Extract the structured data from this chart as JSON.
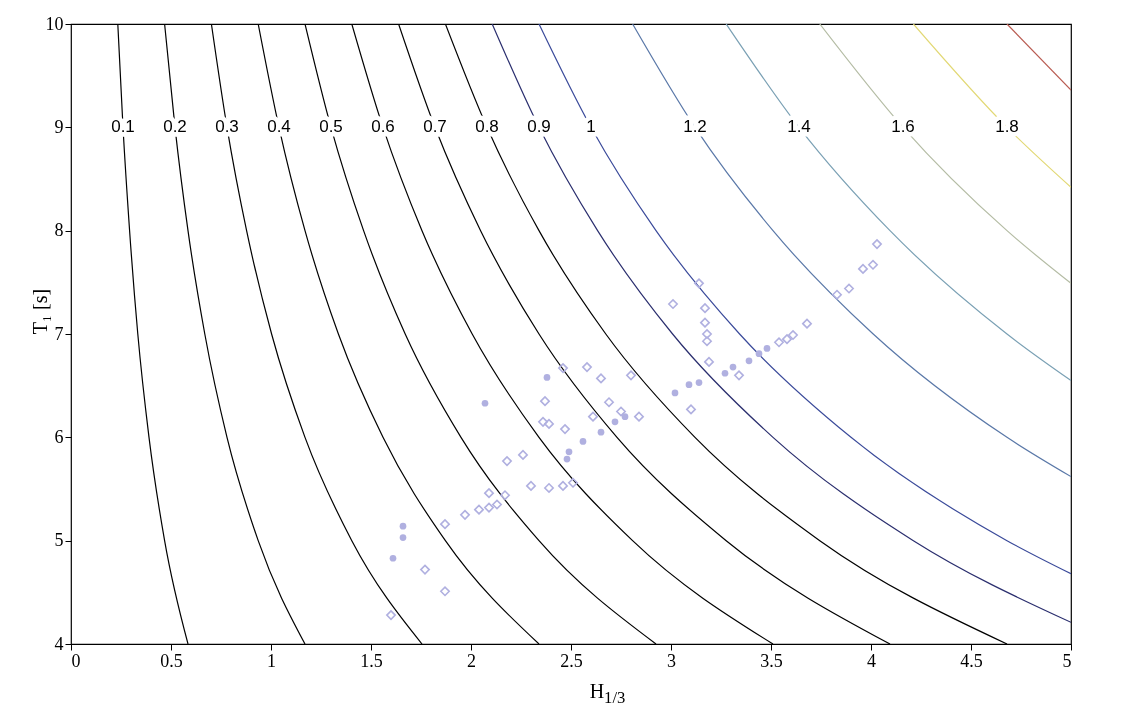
{
  "chart_data": {
    "type": "line",
    "xlabel": "H$_{1/3}$",
    "ylabel": "T₁ [s]",
    "xlim": [
      0,
      5
    ],
    "ylim": [
      4,
      10
    ],
    "xticks": [
      0,
      0.5,
      1,
      1.5,
      2,
      2.5,
      3,
      3.5,
      4,
      4.5,
      5
    ],
    "yticks": [
      4,
      5,
      6,
      7,
      8,
      9,
      10
    ],
    "grid": false,
    "series": [
      {
        "name": "0.1",
        "color": "#000000",
        "x": [
          0.585,
          0.468,
          0.39,
          0.334,
          0.293,
          0.26,
          0.234
        ],
        "values": [
          4,
          5,
          6,
          7,
          8,
          9,
          10
        ]
      },
      {
        "name": "0.2",
        "color": "#000000",
        "x": [
          1.17,
          0.936,
          0.78,
          0.669,
          0.585,
          0.52,
          0.468
        ],
        "values": [
          4,
          5,
          6,
          7,
          8,
          9,
          10
        ]
      },
      {
        "name": "0.3",
        "color": "#000000",
        "x": [
          1.755,
          1.404,
          1.17,
          1.003,
          0.878,
          0.78,
          0.702
        ],
        "values": [
          4,
          5,
          6,
          7,
          8,
          9,
          10
        ]
      },
      {
        "name": "0.4",
        "color": "#000000",
        "x": [
          2.34,
          1.872,
          1.56,
          1.337,
          1.17,
          1.04,
          0.936
        ],
        "values": [
          4,
          5,
          6,
          7,
          8,
          9,
          10
        ]
      },
      {
        "name": "0.5",
        "color": "#000000",
        "x": [
          2.925,
          2.34,
          1.95,
          1.671,
          1.463,
          1.3,
          1.17
        ],
        "values": [
          4,
          5,
          6,
          7,
          8,
          9,
          10
        ]
      },
      {
        "name": "0.6",
        "color": "#000000",
        "x": [
          3.51,
          2.808,
          2.34,
          2.006,
          1.755,
          1.56,
          1.404
        ],
        "values": [
          4,
          5,
          6,
          7,
          8,
          9,
          10
        ]
      },
      {
        "name": "0.7",
        "color": "#000000",
        "x": [
          4.095,
          3.276,
          2.73,
          2.34,
          2.048,
          1.82,
          1.638
        ],
        "values": [
          4,
          5,
          6,
          7,
          8,
          9,
          10
        ]
      },
      {
        "name": "0.8",
        "color": "#000000",
        "x": [
          4.68,
          3.744,
          3.12,
          2.674,
          2.34,
          2.08,
          1.872
        ],
        "values": [
          4,
          5,
          6,
          7,
          8,
          9,
          10
        ]
      },
      {
        "name": "0.9",
        "color": "#2a2e6e",
        "x": [
          5,
          4.212,
          3.51,
          3.008,
          2.633,
          2.34,
          2.106
        ],
        "values": [
          4.21,
          5,
          6,
          7,
          8,
          9,
          10
        ]
      },
      {
        "name": "1",
        "color": "#3a4a9a",
        "x": [
          5,
          4.68,
          3.9,
          3.343,
          2.925,
          2.6,
          2.34
        ],
        "values": [
          4.68,
          5,
          6,
          7,
          8,
          9,
          10
        ]
      },
      {
        "name": "1.2",
        "color": "#5a78a8",
        "x": [
          5,
          4.68,
          4.011,
          3.51,
          3.12,
          2.808
        ],
        "values": [
          5.62,
          6,
          7,
          8,
          9,
          10
        ]
      },
      {
        "name": "1.4",
        "color": "#7aa0b4",
        "x": [
          5,
          4.68,
          4.095,
          3.64,
          3.276
        ],
        "values": [
          6.55,
          7,
          8,
          9,
          10
        ]
      },
      {
        "name": "1.6",
        "color": "#b4bca4",
        "x": [
          5,
          4.68,
          4.16,
          3.744
        ],
        "values": [
          7.49,
          8,
          9,
          10
        ]
      },
      {
        "name": "1.8",
        "color": "#e2d874",
        "x": [
          5,
          4.68,
          4.212
        ],
        "values": [
          8.42,
          9,
          10
        ]
      },
      {
        "color": "#b85a50",
        "x": [
          5,
          4.68
        ],
        "values": [
          9.36,
          10
        ]
      },
      {
        "type": "scatter",
        "marker": "diamond",
        "color": "#b0b0e0",
        "x": [
          1.6,
          1.77,
          1.87,
          1.87,
          1.97,
          2.04,
          2.09,
          2.13,
          2.09,
          2.17,
          2.18,
          2.26,
          2.3,
          2.39,
          2.46,
          2.51,
          2.36,
          2.39,
          2.47,
          2.37,
          2.46,
          2.58,
          2.65,
          2.69,
          2.61,
          2.75,
          2.8,
          2.84,
          3.1,
          3.01,
          3.14,
          3.17,
          3.17,
          3.18,
          3.18,
          3.19,
          3.34,
          3.54,
          3.58,
          3.61,
          3.68,
          3.83,
          3.89,
          3.96,
          4.01,
          4.03
        ],
        "values": [
          4.28,
          4.72,
          4.51,
          5.16,
          5.25,
          5.3,
          5.32,
          5.35,
          5.46,
          5.44,
          5.77,
          5.83,
          5.53,
          5.51,
          5.53,
          5.56,
          6.15,
          6.13,
          6.08,
          6.35,
          6.67,
          6.68,
          6.57,
          6.34,
          6.2,
          6.25,
          6.6,
          6.2,
          6.27,
          7.29,
          7.49,
          7.25,
          7.11,
          7,
          6.93,
          6.73,
          6.6,
          6.92,
          6.95,
          6.99,
          7.1,
          7.38,
          7.44,
          7.63,
          7.67,
          7.87
        ]
      },
      {
        "type": "scatter",
        "marker": "circle",
        "color": "#b0b0e0",
        "x": [
          1.61,
          1.66,
          1.66,
          2.07,
          2.38,
          2.56,
          2.49,
          2.48,
          2.65,
          2.72,
          2.77,
          3.02,
          3.09,
          3.14,
          3.27,
          3.31,
          3.39,
          3.44,
          3.48
        ],
        "values": [
          4.83,
          5.03,
          5.14,
          6.33,
          6.58,
          5.96,
          5.86,
          5.79,
          6.05,
          6.15,
          6.2,
          6.43,
          6.51,
          6.53,
          6.62,
          6.68,
          6.74,
          6.81,
          6.86
        ]
      }
    ]
  }
}
